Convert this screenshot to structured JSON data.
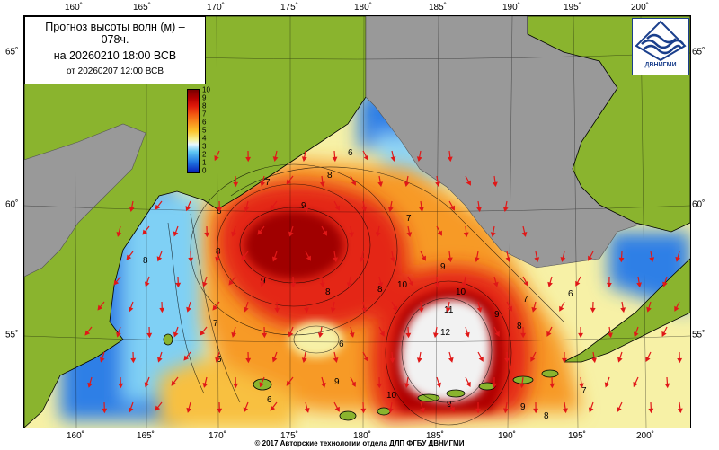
{
  "title": {
    "line1": "Прогноз высоты волн (м) – 078ч.",
    "line2": "на 20260210 18:00 ВСВ",
    "line3": "от 20260207 12:00 ВСВ"
  },
  "logo": {
    "text": "ДВНИГМИ",
    "icon": "waves-logo-icon"
  },
  "colorbar": {
    "labels": [
      "10",
      "9",
      "8",
      "7",
      "6",
      "5",
      "4",
      "3",
      "2",
      "1",
      "0"
    ],
    "unit": "м"
  },
  "axes": {
    "lon_labels": [
      "160˚",
      "165˚",
      "170˚",
      "175˚",
      "180˚",
      "185˚",
      "190˚",
      "195˚",
      "200˚"
    ],
    "lat_labels": [
      "65˚",
      "60˚",
      "55˚"
    ]
  },
  "contour_labels": [
    "6",
    "7",
    "8",
    "9",
    "10",
    "11",
    "12"
  ],
  "copyright": "© 2017 Авторские технологии отдела ДЛП ФГБУ ДВНИГМИ",
  "colors": {
    "land": "#8ab42e",
    "ice": "#999999",
    "max": "#a00000",
    "high": "#e42512",
    "mid": "#f79a25",
    "low": "#f7f1a6",
    "calm": "#2f7fe6",
    "arrow": "#e01818"
  }
}
